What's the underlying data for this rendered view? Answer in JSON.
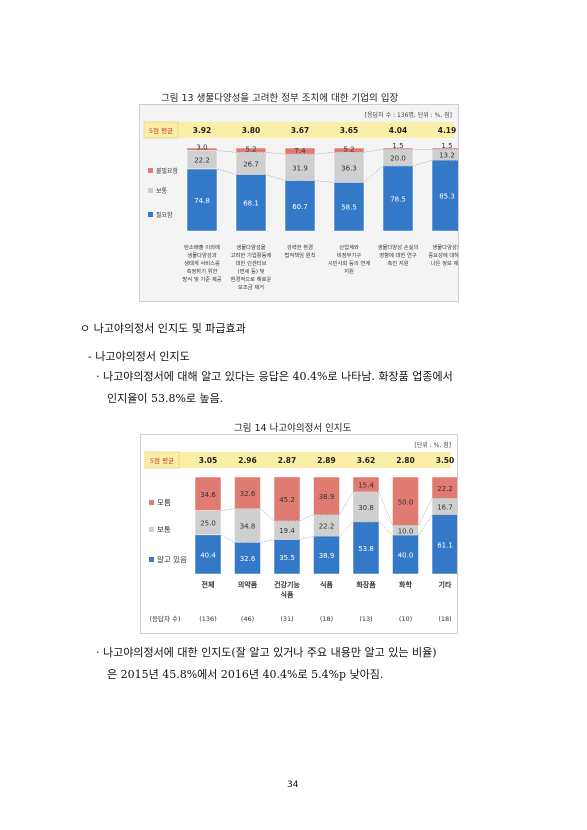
{
  "figure13": {
    "caption": "그림 13 생물다양성을 고려한 정부 조치에 대한 기업의 입장",
    "note": "[응답자 수 : 136명, 단위 : %, 점]",
    "score_label": "5점 평균",
    "scores": [
      "3.92",
      "3.80",
      "3.67",
      "3.65",
      "4.04",
      "4.19"
    ],
    "legend": [
      "불필요함",
      "보통",
      "필요함"
    ],
    "colors": {
      "top": "#e07b72",
      "mid": "#cfcfcf",
      "bottom": "#3478c8",
      "band": "#fbefa7"
    },
    "categories": [
      [
        "탄소배출 이외에",
        "생물다양성과",
        "생태계 서비스를",
        "측정하기 위한",
        "방식 및 기준 제공"
      ],
      [
        "생물다양성을",
        "고려한 기업활동에",
        "대한 인센티브",
        "(면세 등) 및",
        "환경적으로 해로운",
        "보조금 제거"
      ],
      [
        "강력한 환경",
        "법적책임 원칙"
      ],
      [
        "산업계와",
        "비정부기구",
        "시민사회 등의 연계",
        "지원"
      ],
      [
        "생물다양성 손실의",
        "영향에 대한 연구",
        "촉진 지원"
      ],
      [
        "생물다양성의",
        "중요성에 대해 더",
        "나은 정보 제공"
      ]
    ],
    "chart_data": {
      "type": "bar",
      "stacked": true,
      "unit": "%",
      "series": [
        {
          "name": "필요함",
          "values": [
            74.8,
            68.1,
            60.7,
            58.5,
            78.5,
            85.3
          ],
          "labels": [
            "74.8",
            "68.1",
            "60.7",
            "58.5",
            "78.5",
            "85.3"
          ]
        },
        {
          "name": "보통",
          "values": [
            22.2,
            26.7,
            31.9,
            36.3,
            20.0,
            13.2
          ],
          "labels": [
            "22.2",
            "26.7",
            "31.9",
            "36.3",
            "20.0",
            "13.2"
          ]
        },
        {
          "name": "불필요함",
          "values": [
            3.0,
            5.2,
            7.4,
            5.2,
            1.5,
            1.5
          ],
          "labels": [
            "3.0",
            "5.2",
            "7.4",
            "5.2",
            "1.5",
            "1.5"
          ]
        }
      ],
      "ylim": [
        0,
        100
      ],
      "grid": false,
      "legend_position": "left"
    }
  },
  "section": {
    "heading": "ㅇ 나고야의정서 인지도 및 파급효과",
    "sub": "- 나고야의정서 인지도",
    "para1_line1": "· 나고야의정서에 대해 알고 있다는 응답은 40.4%로 나타남. 화장품 업종에서",
    "para1_line2": "인지율이 53.8%로 높음."
  },
  "figure14": {
    "caption": "그림 14 나고야의정서 인지도",
    "note": "[단위 : %, 점]",
    "score_label": "5점 평균",
    "scores": [
      "3.05",
      "2.96",
      "2.87",
      "2.89",
      "3.62",
      "2.80",
      "3.50"
    ],
    "legend": [
      "모름",
      "보통",
      "알고 있음"
    ],
    "categories": [
      [
        "전체"
      ],
      [
        "의약품"
      ],
      [
        "건강기능",
        "식품"
      ],
      [
        "식품"
      ],
      [
        "화장품"
      ],
      [
        "화학"
      ],
      [
        "기타"
      ]
    ],
    "respondents_label": "(응답자 수)",
    "respondents": [
      "(136)",
      "(46)",
      "(31)",
      "(18)",
      "(13)",
      "(10)",
      "(18)"
    ],
    "chart_data": {
      "type": "bar",
      "stacked": true,
      "unit": "%",
      "series": [
        {
          "name": "알고 있음",
          "values": [
            40.4,
            32.6,
            35.5,
            38.9,
            53.8,
            40.0,
            61.1
          ],
          "labels": [
            "40.4",
            "32.6",
            "35.5",
            "38.9",
            "53.8",
            "40.0",
            "61.1"
          ]
        },
        {
          "name": "보통",
          "values": [
            25.0,
            34.8,
            19.4,
            22.2,
            30.8,
            10.0,
            16.7
          ],
          "labels": [
            "25.0",
            "34.8",
            "19.4",
            "22.2",
            "30.8",
            "10.0",
            "16.7"
          ]
        },
        {
          "name": "모름",
          "values": [
            34.6,
            32.6,
            45.2,
            38.9,
            15.4,
            50.0,
            22.2
          ],
          "labels": [
            "34.6",
            "32.6",
            "45.2",
            "38.9",
            "15.4",
            "50.0",
            "22.2"
          ]
        }
      ],
      "ylim": [
        0,
        100
      ],
      "grid": false,
      "legend_position": "left"
    }
  },
  "para2_line1": "· 나고야의정서에 대한 인지도(잘 알고 있거나 주요 내용만 알고 있는 비율)",
  "para2_line2": "은 2015년 45.8%에서 2016년 40.4%로 5.4%p 낮아짐.",
  "page_number": "34"
}
